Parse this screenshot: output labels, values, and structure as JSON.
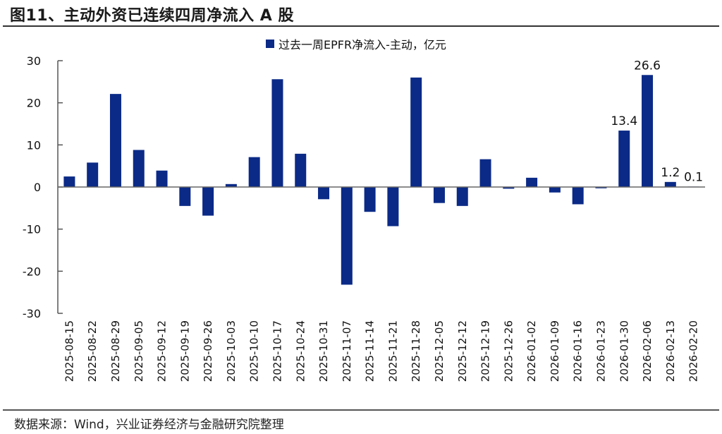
{
  "figure": {
    "title": "图11、主动外资已连续四周净流入 A 股",
    "source": "数据来源：Wind，兴业证券经济与金融研究院整理"
  },
  "legend": {
    "label": "过去一周EPFR净流入-主动，亿元",
    "color": "#0b2a87"
  },
  "chart_data": {
    "type": "bar",
    "title": "图11、主动外资已连续四周净流入 A 股",
    "xlabel": "",
    "ylabel": "",
    "ylim": [
      -30,
      30
    ],
    "yticks": [
      30,
      20,
      10,
      0,
      -10,
      -20,
      -30
    ],
    "grid": false,
    "legend_position": "top",
    "categories": [
      "2025-08-15",
      "2025-08-22",
      "2025-08-29",
      "2025-09-05",
      "2025-09-12",
      "2025-09-19",
      "2025-09-26",
      "2025-10-03",
      "2025-10-10",
      "2025-10-17",
      "2025-10-24",
      "2025-10-31",
      "2025-11-07",
      "2025-11-14",
      "2025-11-21",
      "2025-11-28",
      "2025-12-05",
      "2025-12-12",
      "2025-12-19",
      "2025-12-26",
      "2026-01-02",
      "2026-01-09",
      "2026-01-16",
      "2026-01-23",
      "2026-01-30",
      "2026-02-06",
      "2026-02-13",
      "2026-02-20"
    ],
    "series": [
      {
        "name": "过去一周EPFR净流入-主动，亿元",
        "color": "#0b2a87",
        "values": [
          2.5,
          5.8,
          22.1,
          8.8,
          3.9,
          -4.5,
          -6.8,
          0.7,
          7.1,
          25.6,
          7.9,
          -2.9,
          -23.2,
          -5.9,
          -9.3,
          26.0,
          -3.8,
          -4.5,
          6.6,
          -0.4,
          2.2,
          -1.3,
          -4.1,
          -0.3,
          13.4,
          26.6,
          1.2,
          0.1
        ]
      }
    ],
    "annotations": [
      {
        "category": "2026-01-30",
        "text": "13.4"
      },
      {
        "category": "2026-02-06",
        "text": "26.6"
      },
      {
        "category": "2026-02-13",
        "text": "1.2"
      },
      {
        "category": "2026-02-20",
        "text": "0.1"
      }
    ]
  }
}
